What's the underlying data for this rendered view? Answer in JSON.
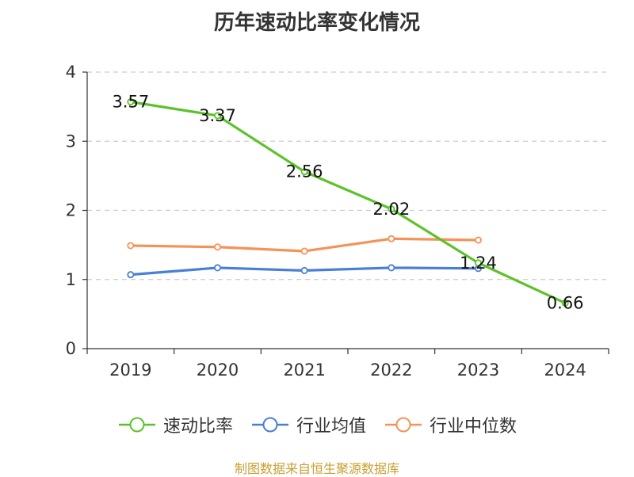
{
  "chart_data": {
    "type": "line",
    "title": "历年速动比率变化情况",
    "categories": [
      "2019",
      "2020",
      "2021",
      "2022",
      "2023",
      "2024"
    ],
    "ylim": [
      0,
      4
    ],
    "yticks": [
      0,
      1,
      2,
      3,
      4
    ],
    "grid": true,
    "legend_position": "bottom",
    "series": [
      {
        "name": "速动比率",
        "color": "#5cc22a",
        "values": [
          3.57,
          3.37,
          2.56,
          2.02,
          1.24,
          0.66
        ],
        "labels": [
          "3.57",
          "3.37",
          "2.56",
          "2.02",
          "1.24",
          "0.66"
        ]
      },
      {
        "name": "行业均值",
        "color": "#4a7fd6",
        "values": [
          1.07,
          1.17,
          1.13,
          1.17,
          1.16,
          null
        ]
      },
      {
        "name": "行业中位数",
        "color": "#f59257",
        "values": [
          1.49,
          1.47,
          1.41,
          1.59,
          1.57,
          null
        ]
      }
    ]
  },
  "source_text": "制图数据来自恒生聚源数据库"
}
